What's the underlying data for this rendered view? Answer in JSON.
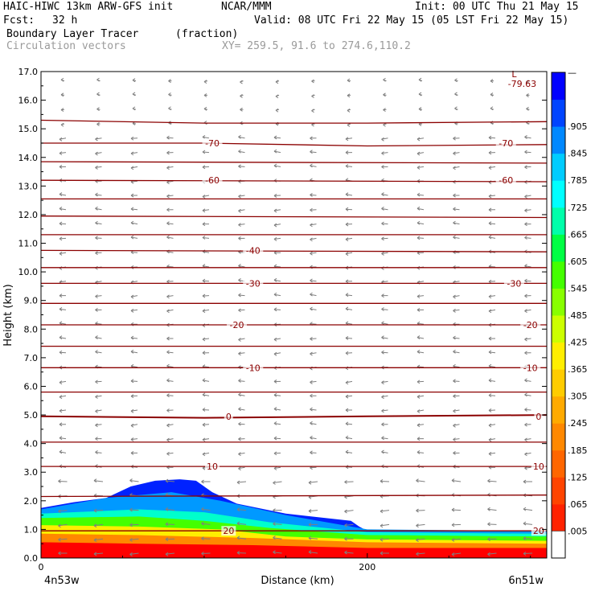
{
  "header": {
    "model": "HAIC-HIWC 13km ARW-GFS init",
    "org": "NCAR/MMM",
    "init": "Init: 00 UTC Thu 21 May 15",
    "fcst_label": "Fcst:",
    "fcst_value": "32 h",
    "valid": "Valid: 08 UTC Fri 22 May 15 (05 LST Fri 22 May 15)",
    "field_name": "Boundary Layer Tracer",
    "field_units": "(fraction)",
    "vector_label": "Circulation vectors",
    "xy_label": "XY= 259.5, 91.6 to 274.6,110.2"
  },
  "chart_data": {
    "type": "heatmap",
    "ylabel": "Height (km)",
    "xlabel": "Distance (km)",
    "ylim": [
      0.0,
      17.0
    ],
    "xlim": [
      0,
      310
    ],
    "y_ticks": [
      "0.0",
      "1.0",
      "2.0",
      "3.0",
      "4.0",
      "5.0",
      "6.0",
      "7.0",
      "8.0",
      "9.0",
      "10.0",
      "11.0",
      "12.0",
      "13.0",
      "14.0",
      "15.0",
      "16.0",
      "17.0"
    ],
    "x_ticks": [
      {
        "value": 0,
        "label": "0"
      },
      {
        "value": 200,
        "label": "200"
      }
    ],
    "x_start_label": "4n53w",
    "x_end_label": "6n51w",
    "colorbar_labels": [
      ".005",
      ".065",
      ".125",
      ".185",
      ".245",
      ".305",
      ".365",
      ".425",
      ".485",
      ".545",
      ".605",
      ".665",
      ".725",
      ".785",
      ".845",
      ".905"
    ],
    "colorbar_top_label": "—",
    "colors": [
      "#ff0000",
      "#ff2200",
      "#ff4400",
      "#ff6600",
      "#ff8800",
      "#ffaa00",
      "#ffcc00",
      "#ffee00",
      "#ccff00",
      "#88ff00",
      "#44ff00",
      "#00ff44",
      "#00ffaa",
      "#00ffff",
      "#00ccff",
      "#0088ff",
      "#0044ff",
      "#0000ff"
    ],
    "tracer_layers": [
      {
        "level": "0.9",
        "color": "#ff0000",
        "top": [
          [
            0,
            0.55
          ],
          [
            60,
            0.5
          ],
          [
            130,
            0.45
          ],
          [
            200,
            0.35
          ],
          [
            310,
            0.35
          ]
        ]
      },
      {
        "level": "0.7",
        "color": "#ff8800",
        "top": [
          [
            0,
            0.85
          ],
          [
            60,
            0.8
          ],
          [
            130,
            0.7
          ],
          [
            200,
            0.55
          ],
          [
            310,
            0.5
          ]
        ]
      },
      {
        "level": "0.5",
        "color": "#ffee00",
        "top": [
          [
            0,
            1.15
          ],
          [
            60,
            1.1
          ],
          [
            110,
            1.0
          ],
          [
            150,
            0.75
          ],
          [
            200,
            0.65
          ],
          [
            310,
            0.6
          ]
        ]
      },
      {
        "level": "0.3",
        "color": "#44ff00",
        "top": [
          [
            0,
            1.4
          ],
          [
            60,
            1.45
          ],
          [
            100,
            1.3
          ],
          [
            140,
            1.05
          ],
          [
            200,
            0.8
          ],
          [
            310,
            0.75
          ]
        ]
      },
      {
        "level": "0.2",
        "color": "#00ffcc",
        "top": [
          [
            0,
            1.55
          ],
          [
            60,
            1.7
          ],
          [
            100,
            1.6
          ],
          [
            140,
            1.25
          ],
          [
            200,
            0.9
          ],
          [
            310,
            0.85
          ]
        ]
      },
      {
        "level": "0.1",
        "color": "#0099ff",
        "top": [
          [
            0,
            1.7
          ],
          [
            40,
            2.1
          ],
          [
            80,
            2.3
          ],
          [
            110,
            2.0
          ],
          [
            150,
            1.5
          ],
          [
            200,
            1.0
          ],
          [
            310,
            0.95
          ]
        ]
      },
      {
        "level": "0.005",
        "color": "#0022ff",
        "top": [
          [
            0,
            1.75
          ],
          [
            20,
            1.95
          ],
          [
            40,
            2.1
          ],
          [
            55,
            2.5
          ],
          [
            70,
            2.7
          ],
          [
            85,
            2.75
          ],
          [
            95,
            2.7
          ],
          [
            105,
            2.3
          ],
          [
            120,
            1.9
          ],
          [
            150,
            1.55
          ],
          [
            190,
            1.3
          ],
          [
            195,
            1.1
          ],
          [
            200,
            0.95
          ],
          [
            310,
            0.95
          ]
        ]
      }
    ],
    "isotherms": [
      {
        "value": -79.63,
        "label": "-79.63",
        "pts": [
          [
            0,
            15.3
          ],
          [
            100,
            15.2
          ],
          [
            200,
            15.2
          ],
          [
            310,
            15.25
          ]
        ]
      },
      {
        "value": -70,
        "label": "-70",
        "pts": [
          [
            0,
            14.5
          ],
          [
            100,
            14.5
          ],
          [
            200,
            14.4
          ],
          [
            310,
            14.45
          ]
        ]
      },
      {
        "value": -65,
        "label": "",
        "pts": [
          [
            0,
            13.85
          ],
          [
            310,
            13.8
          ]
        ]
      },
      {
        "value": -60,
        "label": "-60",
        "pts": [
          [
            0,
            13.2
          ],
          [
            310,
            13.15
          ]
        ]
      },
      {
        "value": -55,
        "label": "",
        "pts": [
          [
            0,
            12.55
          ],
          [
            310,
            12.55
          ]
        ]
      },
      {
        "value": -50,
        "label": "",
        "pts": [
          [
            0,
            11.95
          ],
          [
            310,
            11.9
          ]
        ]
      },
      {
        "value": -45,
        "label": "",
        "pts": [
          [
            0,
            11.3
          ],
          [
            310,
            11.3
          ]
        ]
      },
      {
        "value": -40,
        "label": "-40",
        "pts": [
          [
            0,
            10.75
          ],
          [
            310,
            10.7
          ]
        ]
      },
      {
        "value": -35,
        "label": "",
        "pts": [
          [
            0,
            10.15
          ],
          [
            310,
            10.15
          ]
        ]
      },
      {
        "value": -30,
        "label": "-30",
        "pts": [
          [
            0,
            9.6
          ],
          [
            310,
            9.6
          ]
        ]
      },
      {
        "value": -25,
        "label": "",
        "pts": [
          [
            0,
            8.9
          ],
          [
            310,
            8.9
          ]
        ]
      },
      {
        "value": -20,
        "label": "-20",
        "pts": [
          [
            0,
            8.15
          ],
          [
            310,
            8.15
          ]
        ]
      },
      {
        "value": -15,
        "label": "",
        "pts": [
          [
            0,
            7.4
          ],
          [
            310,
            7.4
          ]
        ]
      },
      {
        "value": -10,
        "label": "-10",
        "pts": [
          [
            0,
            6.65
          ],
          [
            310,
            6.65
          ]
        ]
      },
      {
        "value": -5,
        "label": "",
        "pts": [
          [
            0,
            5.8
          ],
          [
            310,
            5.8
          ]
        ]
      },
      {
        "value": 0,
        "label": "0",
        "pts": [
          [
            0,
            4.95
          ],
          [
            100,
            4.9
          ],
          [
            200,
            4.95
          ],
          [
            310,
            5.0
          ]
        ]
      },
      {
        "value": 5,
        "label": "",
        "pts": [
          [
            0,
            4.05
          ],
          [
            310,
            4.05
          ]
        ]
      },
      {
        "value": 10,
        "label": "10",
        "pts": [
          [
            0,
            3.2
          ],
          [
            310,
            3.2
          ]
        ]
      },
      {
        "value": 15,
        "label": "",
        "pts": [
          [
            0,
            2.15
          ],
          [
            310,
            2.2
          ]
        ]
      },
      {
        "value": 20,
        "label": "20",
        "pts": [
          [
            0,
            0.95
          ],
          [
            310,
            0.95
          ]
        ]
      }
    ],
    "isotherm_labels": [
      {
        "text": "-70",
        "x": 105,
        "y": 14.5
      },
      {
        "text": "-70",
        "x": 285,
        "y": 14.5
      },
      {
        "text": "-60",
        "x": 105,
        "y": 13.2
      },
      {
        "text": "-60",
        "x": 285,
        "y": 13.2
      },
      {
        "text": "-40",
        "x": 130,
        "y": 10.75
      },
      {
        "text": "-30",
        "x": 130,
        "y": 9.6
      },
      {
        "text": "-30",
        "x": 290,
        "y": 9.6
      },
      {
        "text": "-20",
        "x": 120,
        "y": 8.15
      },
      {
        "text": "-20",
        "x": 300,
        "y": 8.15
      },
      {
        "text": "-10",
        "x": 130,
        "y": 6.65
      },
      {
        "text": "-10",
        "x": 300,
        "y": 6.65
      },
      {
        "text": "0",
        "x": 115,
        "y": 4.95
      },
      {
        "text": "0",
        "x": 305,
        "y": 4.95
      },
      {
        "text": "10",
        "x": 105,
        "y": 3.2
      },
      {
        "text": "10",
        "x": 305,
        "y": 3.2
      },
      {
        "text": "20",
        "x": 115,
        "y": 0.95
      },
      {
        "text": "20",
        "x": 305,
        "y": 0.95
      }
    ],
    "min_marker": {
      "symbol": "L",
      "value": "-79.63",
      "x": 290,
      "y": 16.8
    },
    "isotherm_color": "#8b0000",
    "vector_color": "#7f7f7f"
  }
}
